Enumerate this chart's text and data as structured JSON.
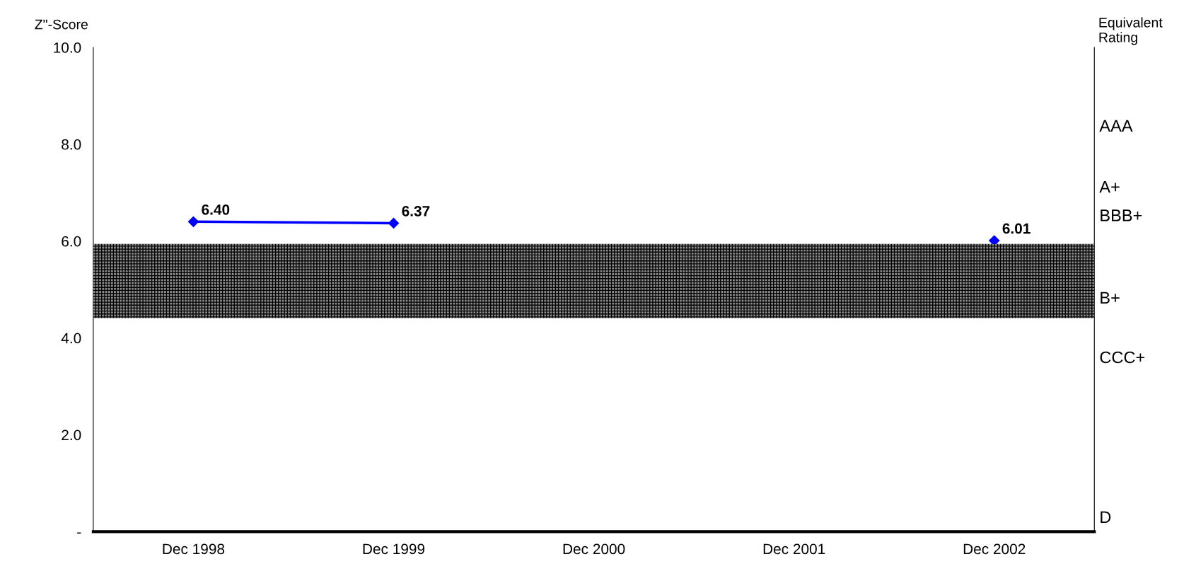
{
  "chart_data": {
    "type": "line",
    "ylabel": "Z\"-Score",
    "y2label": "Equivalent\nRating",
    "categories": [
      "Dec 1998",
      "Dec 1999",
      "Dec 2000",
      "Dec 2001",
      "Dec 2002"
    ],
    "series": [
      {
        "color": "#0000ff",
        "values": [
          6.4,
          6.37,
          null,
          null,
          6.01
        ],
        "value_labels": [
          "6.40",
          "6.37",
          null,
          null,
          "6.01"
        ]
      }
    ],
    "marker": "diamond",
    "line_style": "solid",
    "grid": false,
    "legend": false,
    "ylim": [
      0,
      10
    ],
    "yticks": [
      {
        "value": 0,
        "label": "-"
      },
      {
        "value": 2,
        "label": "2.0"
      },
      {
        "value": 4,
        "label": "4.0"
      },
      {
        "value": 6,
        "label": "6.0"
      },
      {
        "value": 8,
        "label": "8.0"
      },
      {
        "value": 10,
        "label": "10.0"
      }
    ],
    "annotations": [
      "AAA",
      "A+",
      "BBB+",
      "B+",
      "CCC+",
      "D"
    ],
    "bands": [
      {
        "axis": "y",
        "from": 4.41,
        "to": 5.94,
        "color": "#8c8c8c"
      }
    ]
  }
}
